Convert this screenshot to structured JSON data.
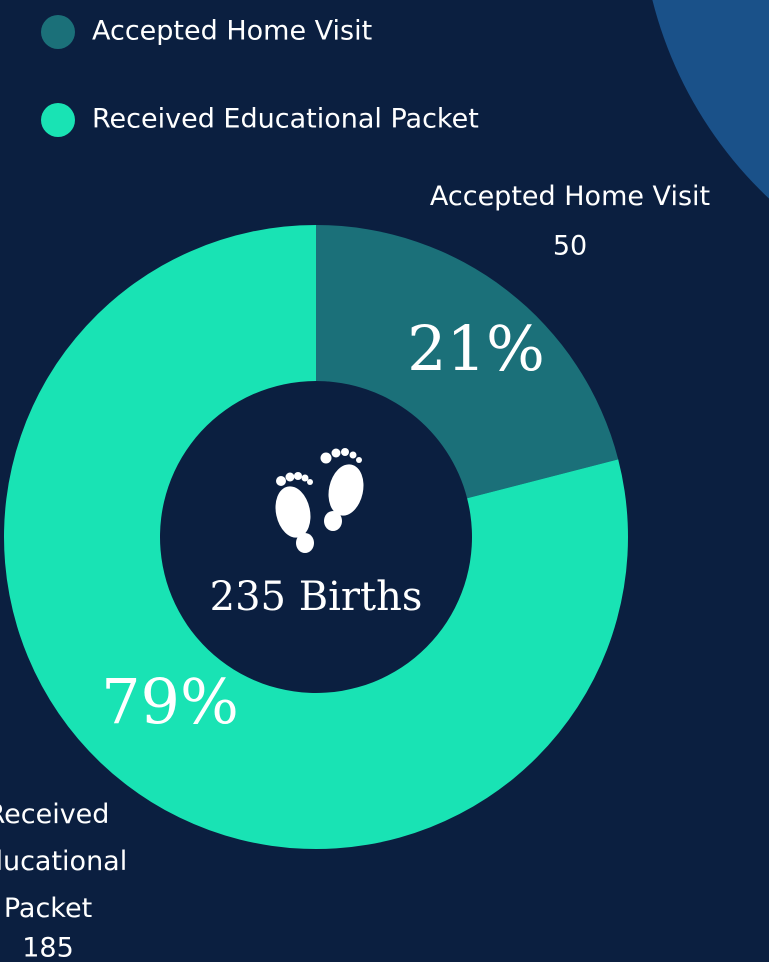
{
  "chart_data": {
    "type": "donut",
    "categories": [
      "Accepted Home Visit",
      "Received Educational Packet"
    ],
    "values": [
      21,
      79
    ],
    "value_labels": [
      "21%",
      "79%"
    ],
    "counts": [
      50,
      185
    ],
    "colors": [
      "#1b7079",
      "#19e3b4"
    ],
    "center_label": "235 Births",
    "legend": "top-left"
  }
}
